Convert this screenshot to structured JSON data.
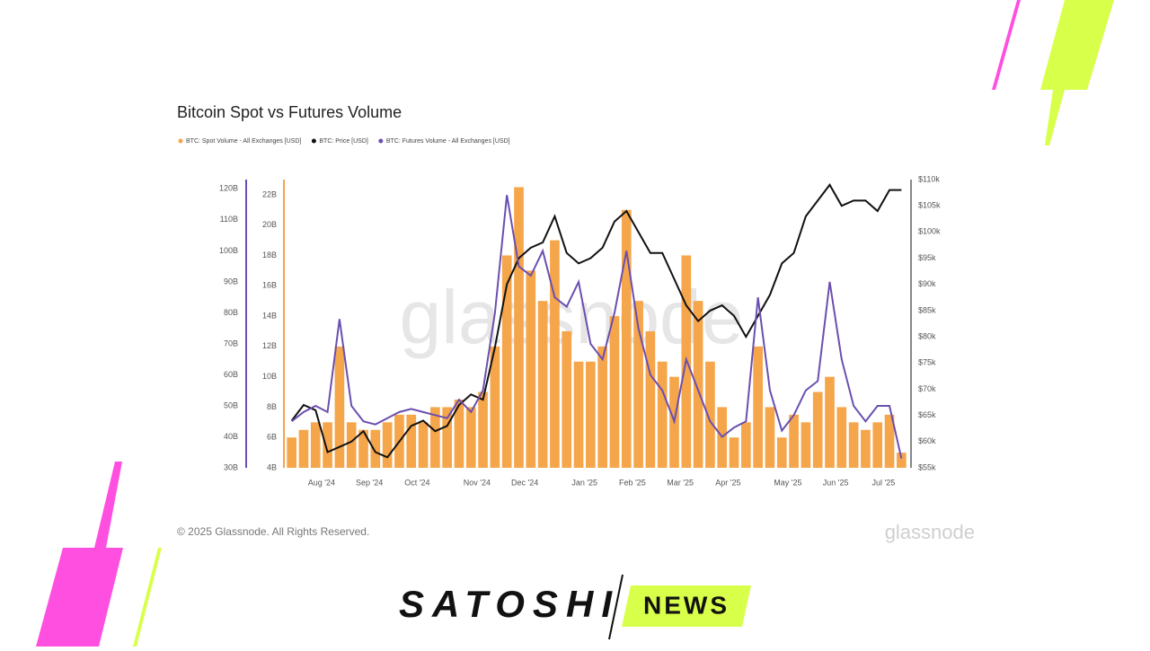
{
  "chart_data": {
    "type": "bar-line",
    "title": "Bitcoin Spot vs Futures Volume",
    "categories": [
      null,
      null,
      null,
      "Aug '24",
      null,
      null,
      null,
      "Sep '24",
      null,
      null,
      null,
      "Oct '24",
      null,
      null,
      null,
      null,
      "Nov '24",
      null,
      null,
      null,
      "Dec '24",
      null,
      null,
      null,
      null,
      "Jan '25",
      null,
      null,
      null,
      "Feb '25",
      null,
      null,
      null,
      "Mar '25",
      null,
      null,
      null,
      "Apr '25",
      null,
      null,
      null,
      null,
      "May '25",
      null,
      null,
      null,
      "Jun '25",
      null,
      null,
      null,
      "Jul '25",
      null
    ],
    "series": [
      {
        "name": "BTC: Spot Volume - All Exchanges [USD]",
        "type": "bar",
        "color": "#f5a54a",
        "values": [
          6000000000,
          6500000000,
          7000000000,
          7000000000,
          12000000000,
          7000000000,
          6500000000,
          6500000000,
          7000000000,
          7500000000,
          7500000000,
          7000000000,
          8000000000,
          8000000000,
          8500000000,
          8000000000,
          9000000000,
          12000000000,
          18000000000,
          22500000000,
          17000000000,
          15000000000,
          19000000000,
          13000000000,
          11000000000,
          11000000000,
          12000000000,
          14000000000,
          21000000000,
          15000000000,
          13000000000,
          11000000000,
          10000000000,
          18000000000,
          15000000000,
          11000000000,
          8000000000,
          6000000000,
          7000000000,
          12000000000,
          8000000000,
          6000000000,
          7500000000,
          7000000000,
          9000000000,
          10000000000,
          8000000000,
          7000000000,
          6500000000,
          7000000000,
          7500000000,
          5000000000
        ]
      },
      {
        "name": "BTC: Price [USD]",
        "type": "line",
        "color": "#111111",
        "axis": "y2",
        "values": [
          64000,
          67000,
          66000,
          58000,
          59000,
          60000,
          62000,
          58000,
          57000,
          60000,
          63000,
          64000,
          62000,
          63000,
          67000,
          69000,
          68000,
          78000,
          90000,
          95000,
          97000,
          98000,
          103000,
          96000,
          94000,
          95000,
          97000,
          102000,
          104000,
          100000,
          96000,
          96000,
          91000,
          86000,
          83000,
          85000,
          86000,
          84000,
          80000,
          84000,
          88000,
          94000,
          96000,
          103000,
          106000,
          109000,
          105000,
          106000,
          106000,
          104000,
          108000,
          108000
        ]
      },
      {
        "name": "BTC: Futures Volume - All Exchanges [USD]",
        "type": "line",
        "color": "#6a4fb0",
        "axis": "y3",
        "values": [
          45000000000,
          48000000000,
          50000000000,
          48000000000,
          78000000000,
          50000000000,
          45000000000,
          44000000000,
          46000000000,
          48000000000,
          49000000000,
          48000000000,
          47000000000,
          46000000000,
          52000000000,
          48000000000,
          55000000000,
          80000000000,
          118000000000,
          95000000000,
          92000000000,
          100000000000,
          85000000000,
          82000000000,
          90000000000,
          70000000000,
          65000000000,
          80000000000,
          100000000000,
          75000000000,
          60000000000,
          55000000000,
          45000000000,
          65000000000,
          55000000000,
          45000000000,
          40000000000,
          43000000000,
          45000000000,
          85000000000,
          55000000000,
          42000000000,
          47000000000,
          55000000000,
          58000000000,
          90000000000,
          65000000000,
          50000000000,
          45000000000,
          50000000000,
          50000000000,
          33000000000
        ]
      }
    ],
    "ylim": [
      4000000000,
      23000000000
    ],
    "yticks": [
      {
        "value": 4000000000,
        "label": "4B"
      },
      {
        "value": 6000000000,
        "label": "6B"
      },
      {
        "value": 8000000000,
        "label": "8B"
      },
      {
        "value": 10000000000,
        "label": "10B"
      },
      {
        "value": 12000000000,
        "label": "12B"
      },
      {
        "value": 14000000000,
        "label": "14B"
      },
      {
        "value": 16000000000,
        "label": "16B"
      },
      {
        "value": 18000000000,
        "label": "18B"
      },
      {
        "value": 20000000000,
        "label": "20B"
      },
      {
        "value": 22000000000,
        "label": "22B"
      }
    ],
    "y2lim": [
      55000,
      110000
    ],
    "y2ticks": [
      {
        "value": 55000,
        "label": "$55k"
      },
      {
        "value": 60000,
        "label": "$60k"
      },
      {
        "value": 65000,
        "label": "$65k"
      },
      {
        "value": 70000,
        "label": "$70k"
      },
      {
        "value": 75000,
        "label": "$75k"
      },
      {
        "value": 80000,
        "label": "$80k"
      },
      {
        "value": 85000,
        "label": "$85k"
      },
      {
        "value": 90000,
        "label": "$90k"
      },
      {
        "value": 95000,
        "label": "$95k"
      },
      {
        "value": 100000,
        "label": "$100k"
      },
      {
        "value": 105000,
        "label": "$105k"
      },
      {
        "value": 110000,
        "label": "$110k"
      }
    ],
    "y3lim": [
      30000000000,
      123000000000
    ],
    "y3ticks": [
      {
        "value": 30000000000,
        "label": "30B"
      },
      {
        "value": 40000000000,
        "label": "40B"
      },
      {
        "value": 50000000000,
        "label": "50B"
      },
      {
        "value": 60000000000,
        "label": "60B"
      },
      {
        "value": 70000000000,
        "label": "70B"
      },
      {
        "value": 80000000000,
        "label": "80B"
      },
      {
        "value": 90000000000,
        "label": "90B"
      },
      {
        "value": 100000000000,
        "label": "100B"
      },
      {
        "value": 110000000000,
        "label": "110B"
      },
      {
        "value": 120000000000,
        "label": "120B"
      }
    ],
    "watermark": "glassnode"
  },
  "footer": {
    "copyright": "© 2025 Glassnode. All Rights Reserved.",
    "brand": "glassnode"
  },
  "logo": {
    "word": "SATOSHI",
    "badge": "NEWS"
  }
}
